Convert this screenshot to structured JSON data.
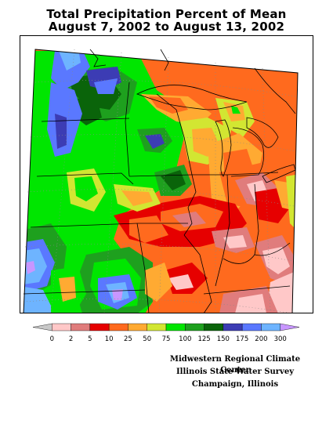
{
  "title": {
    "line1": "Total Precipitation Percent of Mean",
    "line2": "August 7, 2002 to August 13, 2002"
  },
  "legend": {
    "breaks": [
      "0",
      "2",
      "5",
      "10",
      "25",
      "50",
      "75",
      "100",
      "125",
      "150",
      "175",
      "200",
      "300"
    ],
    "colors": [
      "#c8c8c8",
      "#ffc8c8",
      "#e07c7c",
      "#e60000",
      "#ff6a1e",
      "#ffaa32",
      "#d2e632",
      "#00e600",
      "#1ea01e",
      "#0a640a",
      "#3c3cb4",
      "#5a78ff",
      "#6eb4ff",
      "#c896ff"
    ]
  },
  "credits": {
    "line1": "Midwestern Regional Climate Center",
    "line2": "Illinois State Water Survey",
    "line3": "Champaign, Illinois"
  },
  "map": {
    "palette": {
      "lt_blue": "#6eb4ff",
      "blue": "#5a78ff",
      "dk_blue": "#3c3cb4",
      "dk_green": "#0a640a",
      "green": "#1ea01e",
      "lt_green": "#00e600",
      "yellow_green": "#d2e632",
      "lt_orange": "#ffaa32",
      "orange": "#ff6a1e",
      "red": "#e60000",
      "salmon": "#e07c7c",
      "pink": "#ffc8c8",
      "violet": "#c896ff"
    }
  }
}
